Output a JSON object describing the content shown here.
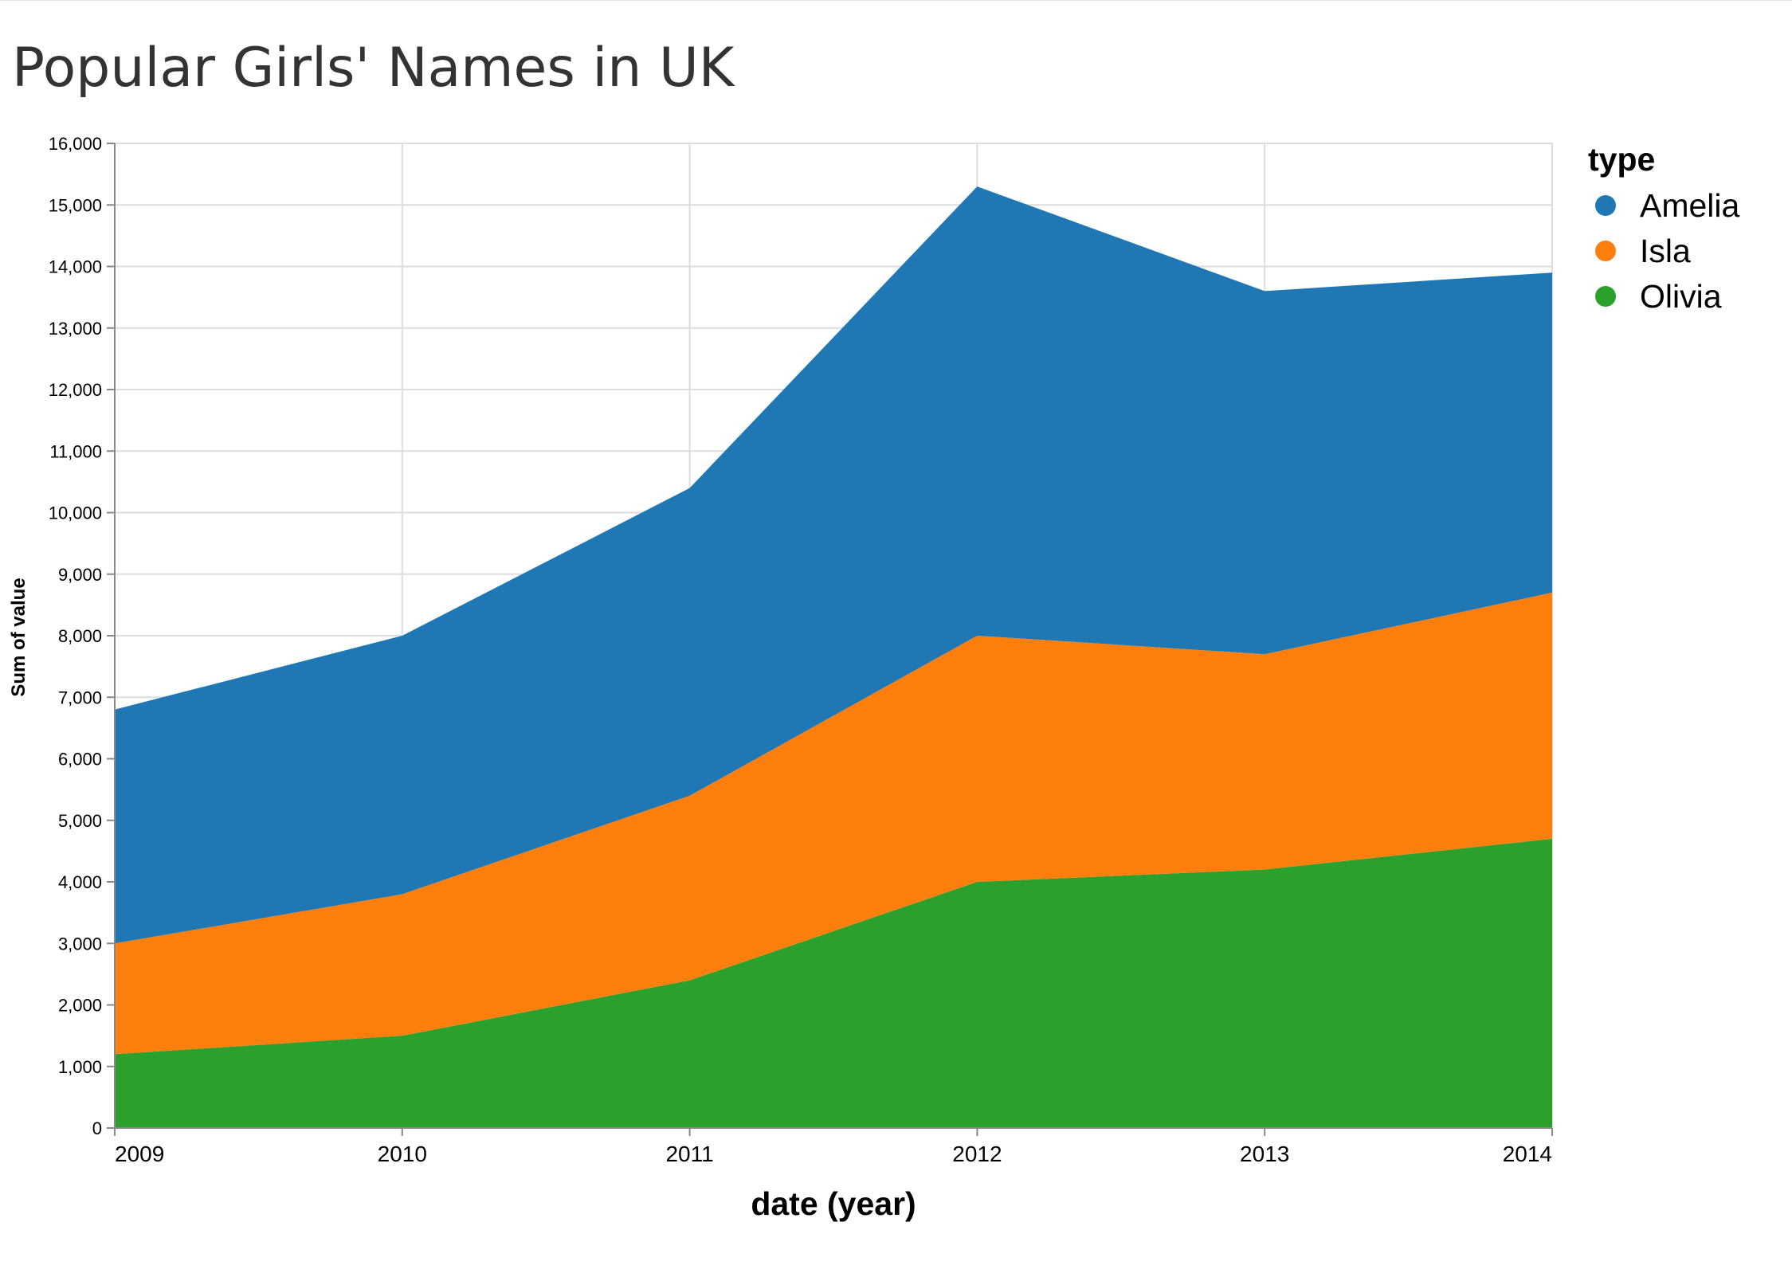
{
  "chart_data": {
    "type": "area",
    "stacked": true,
    "title": "Popular Girls' Names in UK",
    "xlabel": "date (year)",
    "ylabel": "Sum of value",
    "x": [
      "2009",
      "2010",
      "2011",
      "2012",
      "2013",
      "2014"
    ],
    "ylim": [
      0,
      16000
    ],
    "yticks": [
      "0",
      "1,000",
      "2,000",
      "3,000",
      "4,000",
      "5,000",
      "6,000",
      "7,000",
      "8,000",
      "9,000",
      "10,000",
      "11,000",
      "12,000",
      "13,000",
      "14,000",
      "15,000",
      "16,000"
    ],
    "grid": true,
    "legend": {
      "title": "type",
      "position": "right"
    },
    "series": [
      {
        "name": "Olivia",
        "color": "#2ca02c",
        "values": [
          1200,
          1500,
          2400,
          4000,
          4200,
          4700
        ]
      },
      {
        "name": "Isla",
        "color": "#ff7f0e",
        "values": [
          1800,
          2300,
          3000,
          4000,
          3500,
          4000
        ]
      },
      {
        "name": "Amelia",
        "color": "#1f77b4",
        "values": [
          3800,
          4200,
          5000,
          7300,
          5900,
          5200
        ]
      }
    ],
    "legend_order": [
      "Amelia",
      "Isla",
      "Olivia"
    ]
  }
}
